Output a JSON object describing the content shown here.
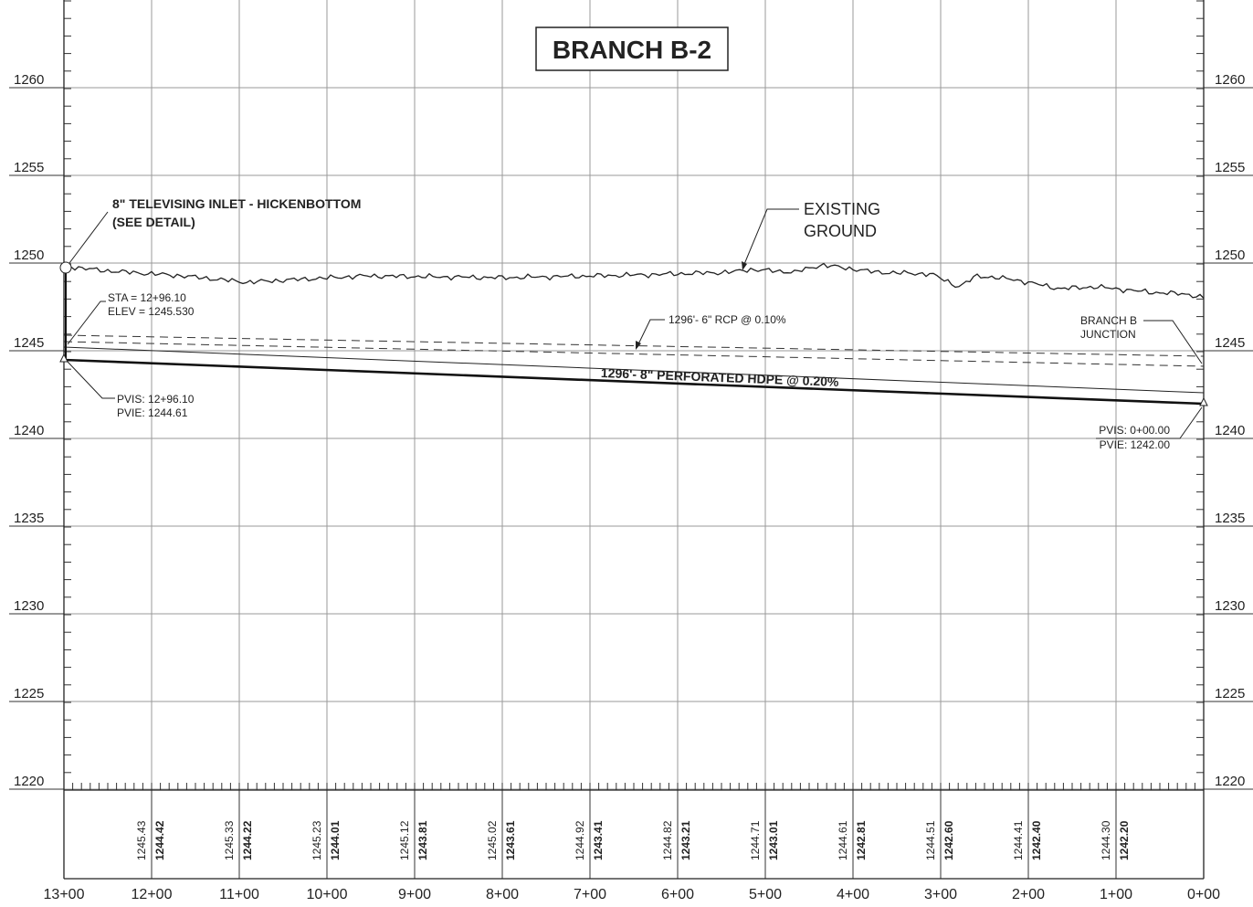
{
  "title": "BRANCH B-2",
  "elevations": [
    "1260",
    "1255",
    "1250",
    "1245",
    "1240",
    "1235",
    "1230",
    "1225",
    "1220"
  ],
  "stations": [
    "13+00",
    "12+00",
    "11+00",
    "10+00",
    "9+00",
    "8+00",
    "7+00",
    "6+00",
    "5+00",
    "4+00",
    "3+00",
    "2+00",
    "1+00",
    "0+00"
  ],
  "profile_values": [
    {
      "existing": "1245.43",
      "proposed": "1244.42"
    },
    {
      "existing": "1245.33",
      "proposed": "1244.22"
    },
    {
      "existing": "1245.23",
      "proposed": "1244.01"
    },
    {
      "existing": "1245.12",
      "proposed": "1243.81"
    },
    {
      "existing": "1245.02",
      "proposed": "1243.61"
    },
    {
      "existing": "1244.92",
      "proposed": "1243.41"
    },
    {
      "existing": "1244.82",
      "proposed": "1243.21"
    },
    {
      "existing": "1244.71",
      "proposed": "1243.01"
    },
    {
      "existing": "1244.61",
      "proposed": "1242.81"
    },
    {
      "existing": "1244.51",
      "proposed": "1242.60"
    },
    {
      "existing": "1244.41",
      "proposed": "1242.40"
    },
    {
      "existing": "1244.30",
      "proposed": "1242.20"
    }
  ],
  "annotations": {
    "inlet": [
      "8\" TELEVISING INLET - HICKENBOTTOM",
      "(SEE DETAIL)"
    ],
    "sta": "STA = 12+96.10",
    "elev": "ELEV = 1245.530",
    "pvis_left": "PVIS: 12+96.10",
    "pvie_left": "PVIE: 1244.61",
    "ground": [
      "EXISTING",
      "GROUND"
    ],
    "rcp": "1296'- 6\" RCP @ 0.10%",
    "hdpe": "1296'- 8\" PERFORATED HDPE @ 0.20%",
    "junction": [
      "BRANCH B",
      "JUNCTION"
    ],
    "pvis_right": "PVIS: 0+00.00",
    "pvie_right": "PVIE: 1242.00"
  }
}
